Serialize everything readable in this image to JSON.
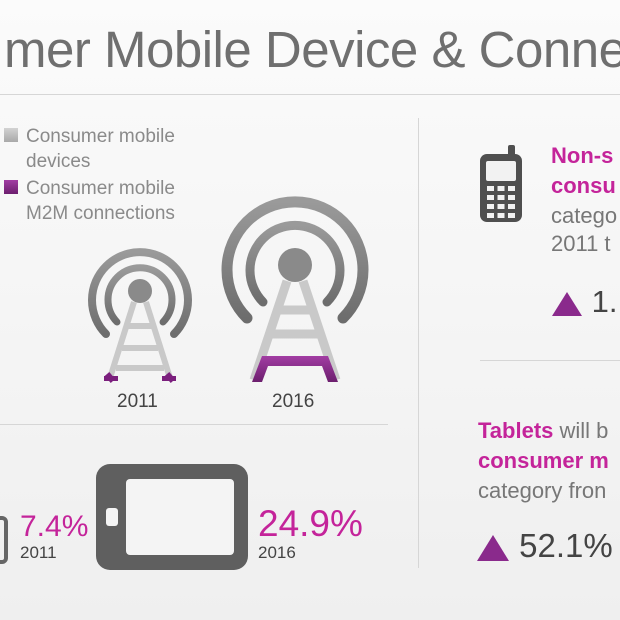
{
  "title": "mer Mobile Device & Conne",
  "legend": {
    "devices_line1": "Consumer mobile",
    "devices_line2": "devices",
    "m2m_line1": "Consumer mobile",
    "m2m_line2": "M2M connections"
  },
  "towers": {
    "year_small": "2011",
    "year_large": "2016"
  },
  "tablet_share": {
    "value_2011": "7.4%",
    "year_2011": "2011",
    "value_2016": "24.9%",
    "year_2016": "2016"
  },
  "right_top": {
    "line1": "Non-s",
    "line2": "consu",
    "line3": "catego",
    "line4": "2011 t",
    "stat": "1."
  },
  "right_bottom": {
    "line1_mag": "Tablets",
    "line1_rest": " will b",
    "line2": "consumer m",
    "line3": "category fron",
    "stat": "52.1%"
  },
  "colors": {
    "accent": "#c4249a",
    "m2m": "#7b1f7d",
    "grey": "#a8a8a8"
  },
  "icons": [
    "cell-tower-icon",
    "feature-phone-icon",
    "tablet-icon",
    "up-triangle-icon"
  ]
}
